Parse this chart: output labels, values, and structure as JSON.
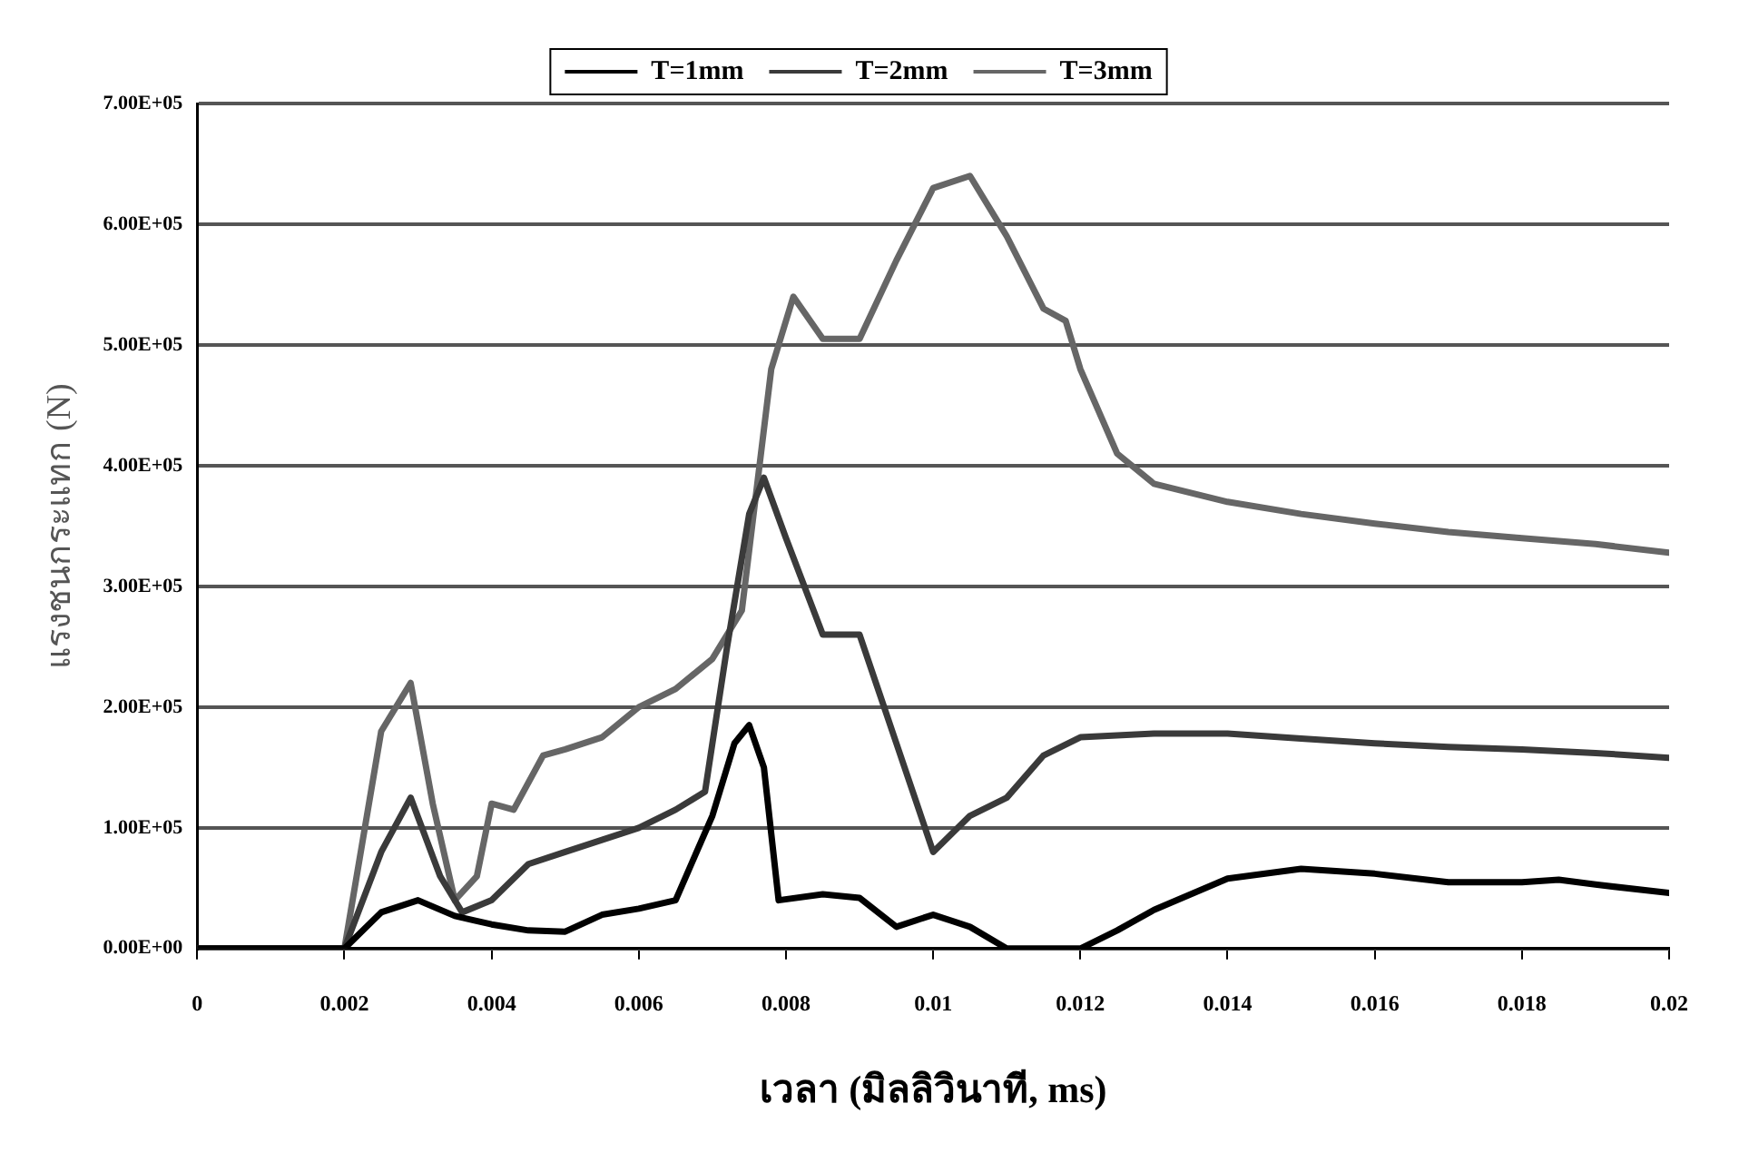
{
  "chart_data": {
    "type": "line",
    "xlabel": "เวลา (มิลลิวินาที, ms)",
    "ylabel": "แรงชนกระแทก (N)",
    "legend": "top",
    "grid": "y",
    "marker": "none",
    "line_style": "solid",
    "xlim": [
      0,
      0.02
    ],
    "xticks": [
      0,
      0.002,
      0.004,
      0.006,
      0.008,
      0.01,
      0.012,
      0.014,
      0.016,
      0.018,
      0.02
    ],
    "ylim": [
      0,
      700000
    ],
    "yticks": [
      {
        "value": 0,
        "label": "0.00E+00"
      },
      {
        "value": 100000,
        "label": "1.00E+05"
      },
      {
        "value": 200000,
        "label": "2.00E+05"
      },
      {
        "value": 300000,
        "label": "3.00E+05"
      },
      {
        "value": 400000,
        "label": "4.00E+05"
      },
      {
        "value": 500000,
        "label": "5.00E+05"
      },
      {
        "value": 600000,
        "label": "6.00E+05"
      },
      {
        "value": 700000,
        "label": "7.00E+05"
      }
    ],
    "series": [
      {
        "name": "T=1mm",
        "color": "#000000",
        "x": [
          0,
          0.002,
          0.0025,
          0.003,
          0.0035,
          0.004,
          0.0045,
          0.005,
          0.0055,
          0.006,
          0.0065,
          0.007,
          0.0073,
          0.0075,
          0.0077,
          0.0079,
          0.0085,
          0.009,
          0.0095,
          0.01,
          0.0105,
          0.011,
          0.012,
          0.0125,
          0.013,
          0.014,
          0.015,
          0.016,
          0.017,
          0.018,
          0.0185,
          0.019,
          0.02
        ],
        "values": [
          0,
          0,
          30000,
          40000,
          27000,
          20000,
          15000,
          14000,
          28000,
          33000,
          40000,
          110000,
          170000,
          185000,
          150000,
          40000,
          45000,
          42000,
          18000,
          28000,
          18000,
          0,
          0,
          15000,
          32000,
          58000,
          66000,
          62000,
          55000,
          55000,
          57000,
          53000,
          46000
        ]
      },
      {
        "name": "T=2mm",
        "color": "#3a3a3a",
        "x": [
          0,
          0.002,
          0.0025,
          0.0029,
          0.0033,
          0.0036,
          0.004,
          0.0045,
          0.005,
          0.0055,
          0.006,
          0.0065,
          0.0069,
          0.0072,
          0.0075,
          0.0077,
          0.008,
          0.0085,
          0.009,
          0.0095,
          0.01,
          0.0105,
          0.011,
          0.0115,
          0.012,
          0.013,
          0.014,
          0.015,
          0.016,
          0.017,
          0.018,
          0.019,
          0.02
        ],
        "values": [
          0,
          0,
          80000,
          125000,
          60000,
          30000,
          40000,
          70000,
          80000,
          90000,
          100000,
          115000,
          130000,
          250000,
          360000,
          390000,
          340000,
          260000,
          260000,
          170000,
          80000,
          110000,
          125000,
          160000,
          175000,
          178000,
          178000,
          174000,
          170000,
          167000,
          165000,
          162000,
          158000
        ]
      },
      {
        "name": "T=3mm",
        "color": "#666666",
        "x": [
          0,
          0.002,
          0.0025,
          0.0029,
          0.0032,
          0.0035,
          0.0038,
          0.004,
          0.0043,
          0.0047,
          0.005,
          0.0055,
          0.006,
          0.0065,
          0.007,
          0.0074,
          0.0078,
          0.0081,
          0.0085,
          0.009,
          0.0095,
          0.01,
          0.0105,
          0.011,
          0.0115,
          0.0118,
          0.012,
          0.0125,
          0.013,
          0.014,
          0.015,
          0.016,
          0.017,
          0.018,
          0.019,
          0.02
        ],
        "values": [
          0,
          0,
          180000,
          220000,
          120000,
          40000,
          60000,
          120000,
          115000,
          160000,
          165000,
          175000,
          200000,
          215000,
          240000,
          280000,
          480000,
          540000,
          505000,
          505000,
          570000,
          630000,
          640000,
          590000,
          530000,
          520000,
          480000,
          410000,
          385000,
          370000,
          360000,
          352000,
          345000,
          340000,
          335000,
          328000
        ]
      }
    ]
  }
}
